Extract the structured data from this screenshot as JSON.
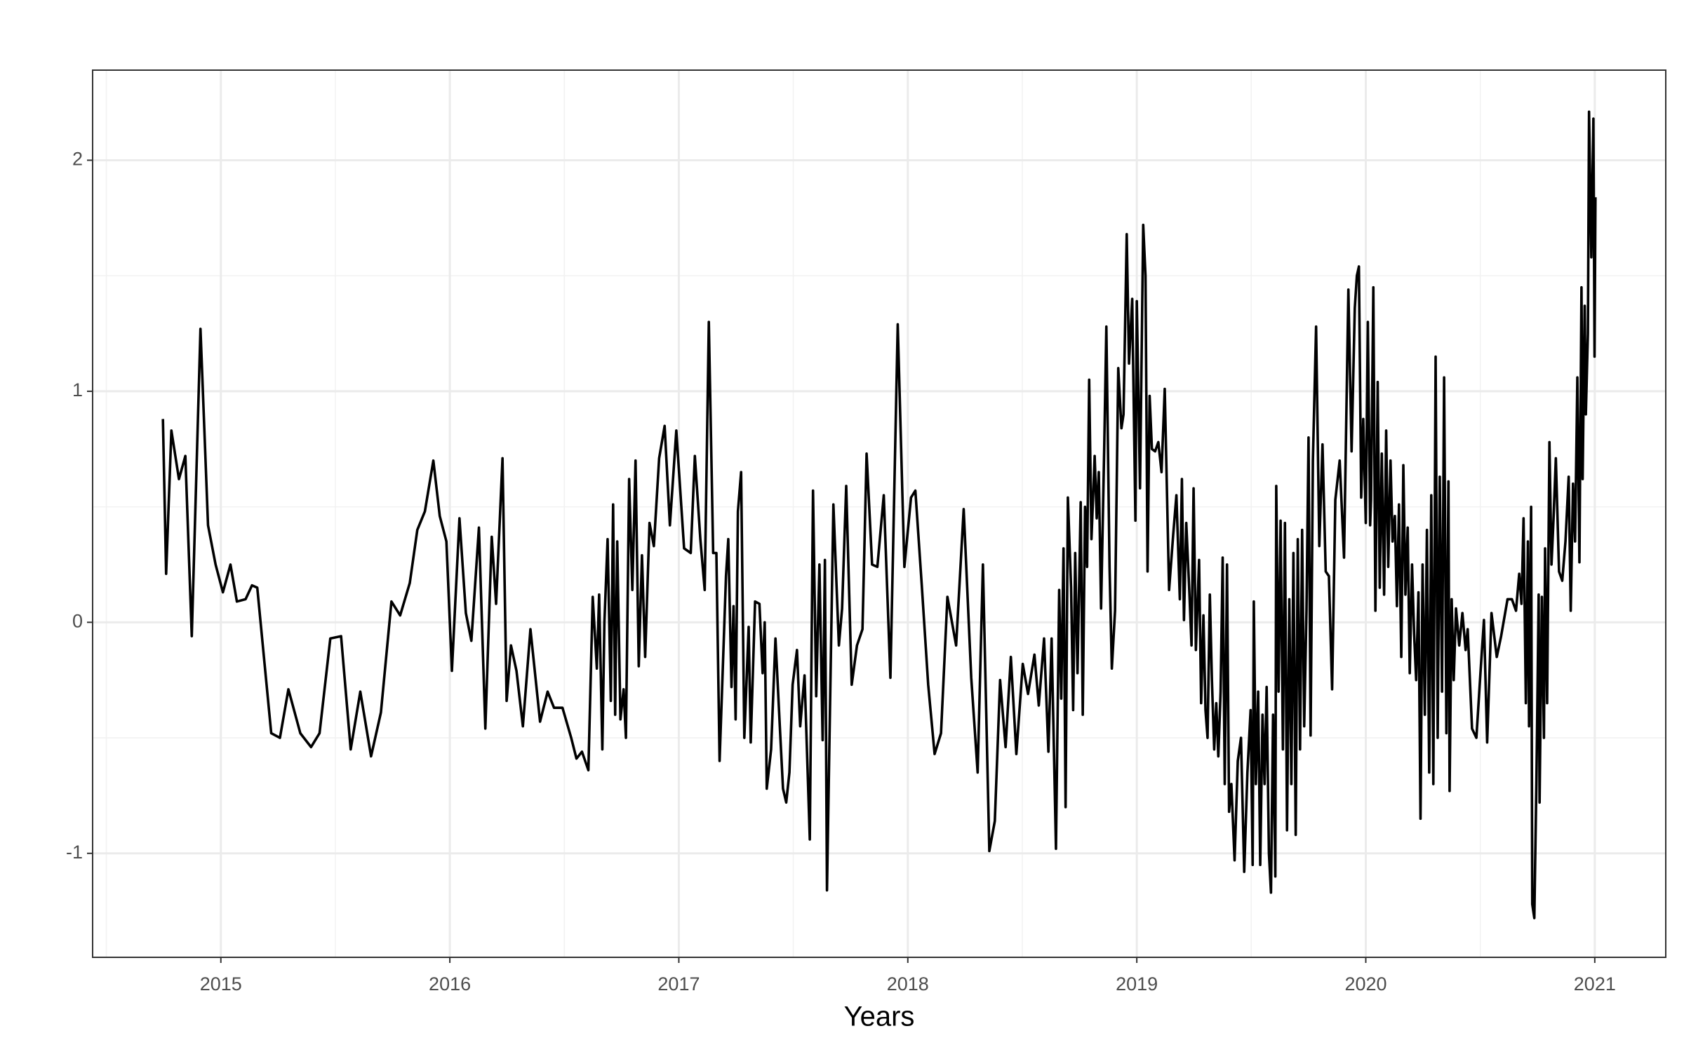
{
  "chart_data": {
    "type": "line",
    "xlabel": "Years",
    "color": "#000000",
    "grid": true,
    "xlim": [
      2014.44,
      2021.31
    ],
    "ylim": [
      -1.45,
      2.39
    ],
    "xticks": [
      2015,
      2016,
      2017,
      2018,
      2019,
      2020,
      2021
    ],
    "yticks": [
      -1,
      0,
      1,
      2
    ],
    "x_minor_grid": [
      2014.5,
      2015.5,
      2016.5,
      2017.5,
      2018.5,
      2019.5,
      2020.5
    ],
    "y_minor_grid": [
      -0.5,
      0.5,
      1.5
    ],
    "x": [
      2014.747,
      2014.761,
      2014.784,
      2014.817,
      2014.845,
      2014.873,
      2014.911,
      2014.944,
      2014.977,
      2015.009,
      2015.042,
      2015.07,
      2015.108,
      2015.136,
      2015.159,
      2015.22,
      2015.258,
      2015.295,
      2015.347,
      2015.394,
      2015.431,
      2015.478,
      2015.525,
      2015.567,
      2015.609,
      2015.656,
      2015.699,
      2015.745,
      2015.783,
      2015.825,
      2015.858,
      2015.891,
      2015.928,
      2015.956,
      2015.985,
      2016.009,
      2016.042,
      2016.07,
      2016.094,
      2016.127,
      2016.155,
      2016.183,
      2016.202,
      2016.23,
      2016.248,
      2016.267,
      2016.291,
      2016.319,
      2016.352,
      2016.394,
      2016.427,
      2016.455,
      2016.492,
      2016.53,
      2016.553,
      2016.577,
      2016.605,
      2016.624,
      2016.642,
      2016.652,
      2016.666,
      2016.675,
      2016.689,
      2016.703,
      2016.713,
      2016.722,
      2016.731,
      2016.745,
      2016.759,
      2016.769,
      2016.783,
      2016.797,
      2016.811,
      2016.825,
      2016.839,
      2016.853,
      2016.872,
      2016.891,
      2016.914,
      2016.938,
      2016.961,
      2016.989,
      2017.023,
      2017.052,
      2017.07,
      2017.094,
      2017.113,
      2017.131,
      2017.15,
      2017.164,
      2017.178,
      2017.206,
      2017.216,
      2017.23,
      2017.239,
      2017.248,
      2017.258,
      2017.272,
      2017.286,
      2017.305,
      2017.314,
      2017.333,
      2017.352,
      2017.366,
      2017.375,
      2017.384,
      2017.403,
      2017.422,
      2017.441,
      2017.455,
      2017.469,
      2017.483,
      2017.497,
      2017.516,
      2017.53,
      2017.549,
      2017.572,
      2017.586,
      2017.6,
      2017.614,
      2017.628,
      2017.638,
      2017.647,
      2017.675,
      2017.699,
      2017.713,
      2017.731,
      2017.755,
      2017.778,
      2017.802,
      2017.82,
      2017.844,
      2017.867,
      2017.895,
      2017.924,
      2017.956,
      2017.985,
      2018.014,
      2018.033,
      2018.061,
      2018.089,
      2018.117,
      2018.145,
      2018.173,
      2018.211,
      2018.244,
      2018.277,
      2018.305,
      2018.328,
      2018.356,
      2018.38,
      2018.403,
      2018.427,
      2018.45,
      2018.474,
      2018.502,
      2018.525,
      2018.553,
      2018.572,
      2018.595,
      2018.614,
      2018.628,
      2018.647,
      2018.661,
      2018.67,
      2018.68,
      2018.689,
      2018.699,
      2018.713,
      2018.722,
      2018.731,
      2018.741,
      2018.755,
      2018.764,
      2018.774,
      2018.783,
      2018.792,
      2018.802,
      2018.816,
      2018.825,
      2018.834,
      2018.844,
      2018.858,
      2018.867,
      2018.881,
      2018.891,
      2018.905,
      2018.919,
      2018.933,
      2018.942,
      2018.956,
      2018.966,
      2018.98,
      2018.994,
      2019.0,
      2019.014,
      2019.028,
      2019.038,
      2019.047,
      2019.056,
      2019.066,
      2019.08,
      2019.094,
      2019.108,
      2019.122,
      2019.141,
      2019.159,
      2019.173,
      2019.188,
      2019.197,
      2019.206,
      2019.216,
      2019.23,
      2019.239,
      2019.248,
      2019.258,
      2019.272,
      2019.281,
      2019.291,
      2019.3,
      2019.309,
      2019.319,
      2019.328,
      2019.338,
      2019.347,
      2019.356,
      2019.366,
      2019.375,
      2019.384,
      2019.394,
      2019.403,
      2019.413,
      2019.427,
      2019.441,
      2019.455,
      2019.469,
      2019.483,
      2019.497,
      2019.506,
      2019.511,
      2019.52,
      2019.53,
      2019.539,
      2019.549,
      2019.558,
      2019.567,
      2019.577,
      2019.586,
      2019.595,
      2019.605,
      2019.609,
      2019.619,
      2019.628,
      2019.638,
      2019.647,
      2019.656,
      2019.666,
      2019.675,
      2019.684,
      2019.694,
      2019.703,
      2019.713,
      2019.722,
      2019.731,
      2019.741,
      2019.75,
      2019.759,
      2019.769,
      2019.783,
      2019.797,
      2019.811,
      2019.825,
      2019.839,
      2019.853,
      2019.867,
      2019.886,
      2019.905,
      2019.924,
      2019.938,
      2019.952,
      2019.961,
      2019.97,
      2019.98,
      2019.989,
      2020.0,
      2020.009,
      2020.019,
      2020.023,
      2020.033,
      2020.042,
      2020.052,
      2020.061,
      2020.07,
      2020.08,
      2020.089,
      2020.098,
      2020.108,
      2020.117,
      2020.127,
      2020.136,
      2020.145,
      2020.155,
      2020.164,
      2020.173,
      2020.183,
      2020.192,
      2020.202,
      2020.211,
      2020.22,
      2020.23,
      2020.239,
      2020.248,
      2020.258,
      2020.267,
      2020.277,
      2020.286,
      2020.295,
      2020.305,
      2020.314,
      2020.323,
      2020.333,
      2020.342,
      2020.352,
      2020.361,
      2020.366,
      2020.375,
      2020.384,
      2020.394,
      2020.408,
      2020.422,
      2020.436,
      2020.445,
      2020.464,
      2020.483,
      2020.502,
      2020.516,
      2020.53,
      2020.549,
      2020.572,
      2020.591,
      2020.619,
      2020.638,
      2020.656,
      2020.67,
      2020.68,
      2020.689,
      2020.699,
      2020.708,
      2020.713,
      2020.722,
      2020.727,
      2020.736,
      2020.745,
      2020.755,
      2020.759,
      2020.769,
      2020.778,
      2020.783,
      2020.792,
      2020.802,
      2020.811,
      2020.82,
      2020.83,
      2020.844,
      2020.858,
      2020.872,
      2020.886,
      2020.895,
      2020.905,
      2020.914,
      2020.924,
      2020.933,
      2020.942,
      2020.947,
      2020.956,
      2020.961,
      2020.97,
      2020.975,
      2020.985,
      2020.994,
      2020.999,
      2021.003
    ],
    "values": [
      0.88,
      0.21,
      0.83,
      0.62,
      0.72,
      -0.06,
      1.27,
      0.42,
      0.25,
      0.13,
      0.25,
      0.09,
      0.1,
      0.16,
      0.15,
      -0.48,
      -0.5,
      -0.29,
      -0.48,
      -0.54,
      -0.48,
      -0.07,
      -0.06,
      -0.55,
      -0.3,
      -0.58,
      -0.39,
      0.09,
      0.03,
      0.17,
      0.4,
      0.48,
      0.7,
      0.46,
      0.35,
      -0.21,
      0.45,
      0.04,
      -0.08,
      0.41,
      -0.46,
      0.37,
      0.08,
      0.71,
      -0.34,
      -0.1,
      -0.21,
      -0.45,
      -0.03,
      -0.43,
      -0.3,
      -0.37,
      -0.37,
      -0.5,
      -0.59,
      -0.56,
      -0.64,
      0.11,
      -0.2,
      0.12,
      -0.55,
      0.0,
      0.36,
      -0.34,
      0.51,
      -0.4,
      0.35,
      -0.42,
      -0.29,
      -0.5,
      0.62,
      0.14,
      0.7,
      -0.19,
      0.29,
      -0.15,
      0.43,
      0.33,
      0.71,
      0.85,
      0.42,
      0.83,
      0.32,
      0.3,
      0.72,
      0.36,
      0.14,
      1.3,
      0.3,
      0.3,
      -0.6,
      0.2,
      0.36,
      -0.28,
      0.07,
      -0.42,
      0.48,
      0.65,
      -0.5,
      -0.02,
      -0.52,
      0.09,
      0.08,
      -0.22,
      0.0,
      -0.72,
      -0.55,
      -0.07,
      -0.45,
      -0.72,
      -0.78,
      -0.65,
      -0.27,
      -0.12,
      -0.45,
      -0.23,
      -0.94,
      0.57,
      -0.32,
      0.25,
      -0.51,
      0.27,
      -1.16,
      0.51,
      -0.1,
      0.06,
      0.59,
      -0.27,
      -0.1,
      -0.03,
      0.73,
      0.25,
      0.24,
      0.55,
      -0.24,
      1.29,
      0.24,
      0.54,
      0.57,
      0.16,
      -0.27,
      -0.57,
      -0.48,
      0.11,
      -0.1,
      0.49,
      -0.24,
      -0.65,
      0.25,
      -0.99,
      -0.86,
      -0.25,
      -0.54,
      -0.15,
      -0.57,
      -0.18,
      -0.31,
      -0.14,
      -0.36,
      -0.07,
      -0.56,
      -0.07,
      -0.98,
      0.14,
      -0.33,
      0.32,
      -0.8,
      0.54,
      0.15,
      -0.38,
      0.3,
      -0.22,
      0.52,
      -0.4,
      0.5,
      0.24,
      1.05,
      0.36,
      0.72,
      0.45,
      0.65,
      0.06,
      0.77,
      1.28,
      0.24,
      -0.2,
      0.05,
      1.1,
      0.84,
      0.9,
      1.68,
      1.12,
      1.4,
      0.44,
      1.39,
      0.58,
      1.72,
      1.5,
      0.22,
      0.98,
      0.75,
      0.74,
      0.78,
      0.65,
      1.01,
      0.14,
      0.38,
      0.55,
      0.1,
      0.62,
      0.01,
      0.43,
      0.12,
      -0.1,
      0.58,
      -0.12,
      0.27,
      -0.35,
      0.03,
      -0.38,
      -0.5,
      0.12,
      -0.25,
      -0.55,
      -0.35,
      -0.58,
      -0.3,
      0.28,
      -0.7,
      0.25,
      -0.82,
      -0.7,
      -1.03,
      -0.6,
      -0.5,
      -1.08,
      -0.65,
      -0.38,
      -1.05,
      0.09,
      -0.7,
      -0.3,
      -1.05,
      -0.4,
      -0.7,
      -0.28,
      -1.0,
      -1.17,
      -0.4,
      -1.1,
      0.59,
      -0.3,
      0.44,
      -0.55,
      0.43,
      -0.9,
      0.1,
      -0.7,
      0.3,
      -0.92,
      0.36,
      -0.55,
      0.4,
      -0.45,
      0.05,
      0.8,
      -0.49,
      0.7,
      1.28,
      0.33,
      0.77,
      0.22,
      0.2,
      -0.29,
      0.53,
      0.7,
      0.28,
      1.44,
      0.74,
      1.36,
      1.5,
      1.54,
      0.54,
      0.88,
      0.43,
      1.3,
      0.42,
      0.53,
      1.45,
      0.05,
      1.04,
      0.15,
      0.73,
      0.12,
      0.83,
      0.24,
      0.7,
      0.35,
      0.46,
      0.07,
      0.51,
      -0.15,
      0.68,
      0.12,
      0.41,
      -0.22,
      0.25,
      -0.05,
      -0.25,
      0.13,
      -0.85,
      0.25,
      -0.4,
      0.4,
      -0.65,
      0.55,
      -0.7,
      1.15,
      -0.5,
      0.63,
      -0.3,
      1.06,
      -0.48,
      0.61,
      -0.73,
      0.1,
      -0.25,
      0.06,
      -0.1,
      0.04,
      -0.12,
      -0.03,
      -0.46,
      -0.5,
      -0.2,
      0.01,
      -0.52,
      0.04,
      -0.15,
      -0.06,
      0.1,
      0.1,
      0.05,
      0.21,
      0.08,
      0.45,
      -0.35,
      0.35,
      -0.45,
      0.5,
      -1.22,
      -1.28,
      -0.7,
      0.12,
      -0.78,
      0.11,
      -0.5,
      0.32,
      -0.35,
      0.78,
      0.25,
      0.45,
      0.71,
      0.22,
      0.18,
      0.35,
      0.63,
      0.05,
      0.6,
      0.35,
      1.06,
      0.26,
      1.45,
      0.62,
      1.37,
      0.9,
      1.25,
      2.21,
      1.58,
      2.18,
      1.15,
      1.84
    ]
  }
}
